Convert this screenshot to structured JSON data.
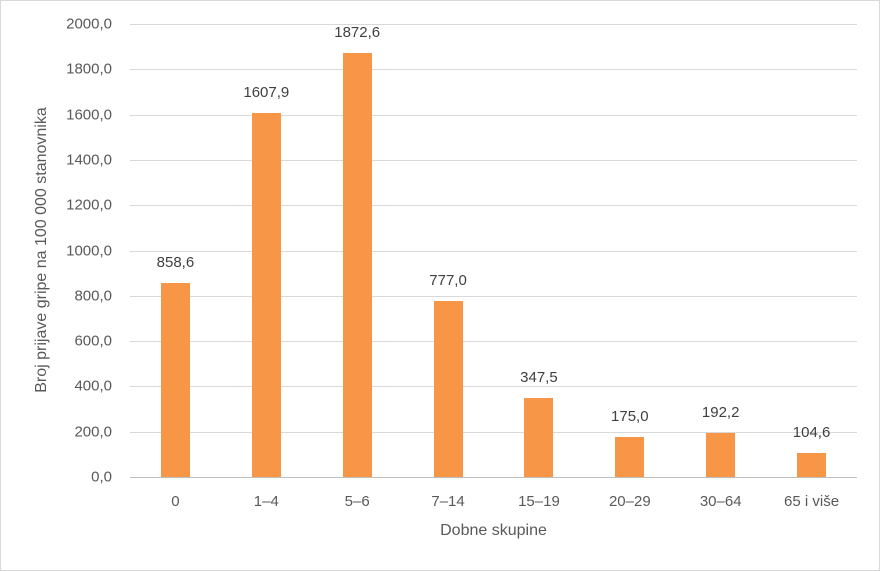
{
  "chart_data": {
    "type": "bar",
    "title": "",
    "xlabel": "Dobne skupine",
    "ylabel": "Broj prijave gripe na 100 000 stanovnika",
    "categories": [
      "0",
      "1–4",
      "5–6",
      "7–14",
      "15–19",
      "20–29",
      "30–64",
      "65 i više"
    ],
    "values": [
      858.6,
      1607.9,
      1872.6,
      777.0,
      347.5,
      175.0,
      192.2,
      104.6
    ],
    "value_labels": [
      "858,6",
      "1607,9",
      "1872,6",
      "777,0",
      "347,5",
      "175,0",
      "192,2",
      "104,6"
    ],
    "yticks": [
      "0,0",
      "200,0",
      "400,0",
      "600,0",
      "800,0",
      "1000,0",
      "1200,0",
      "1400,0",
      "1600,0",
      "1800,0",
      "2000,0"
    ],
    "ylim": [
      0,
      2000
    ],
    "grid": true,
    "legend": "none",
    "bar_color": "#f79646"
  }
}
